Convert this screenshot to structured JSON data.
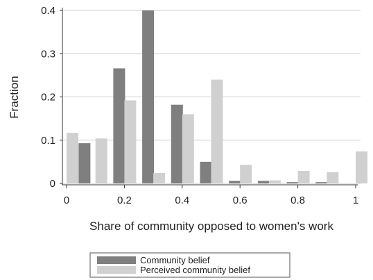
{
  "chart_data": {
    "type": "bar",
    "xlabel": "Share of community opposed to women's work",
    "ylabel": "Fraction",
    "xlim": [
      0,
      1
    ],
    "ylim": [
      0,
      0.4
    ],
    "xticks": [
      "0",
      "0.2",
      "0.4",
      "0.6",
      "0.8",
      "1"
    ],
    "yticks": [
      "0",
      "0.1",
      "0.2",
      "0.3",
      "0.4"
    ],
    "grid": true,
    "legend_position": "bottom",
    "colors": {
      "Community belief": "#7f7f7f",
      "Perceived community belief": "#d0d0d0"
    },
    "series": [
      {
        "name": "Community belief",
        "x": [
          0.08,
          0.2,
          0.3,
          0.4,
          0.5,
          0.6,
          0.7,
          0.8,
          0.9
        ],
        "values": [
          0.093,
          0.266,
          0.4,
          0.182,
          0.05,
          0.006,
          0.006,
          0.003,
          0.003
        ]
      },
      {
        "name": "Perceived community belief",
        "x": [
          0.0,
          0.1,
          0.2,
          0.3,
          0.4,
          0.5,
          0.6,
          0.7,
          0.8,
          0.9,
          1.0
        ],
        "values": [
          0.117,
          0.104,
          0.192,
          0.024,
          0.16,
          0.24,
          0.043,
          0.007,
          0.029,
          0.026,
          0.074
        ]
      }
    ]
  }
}
